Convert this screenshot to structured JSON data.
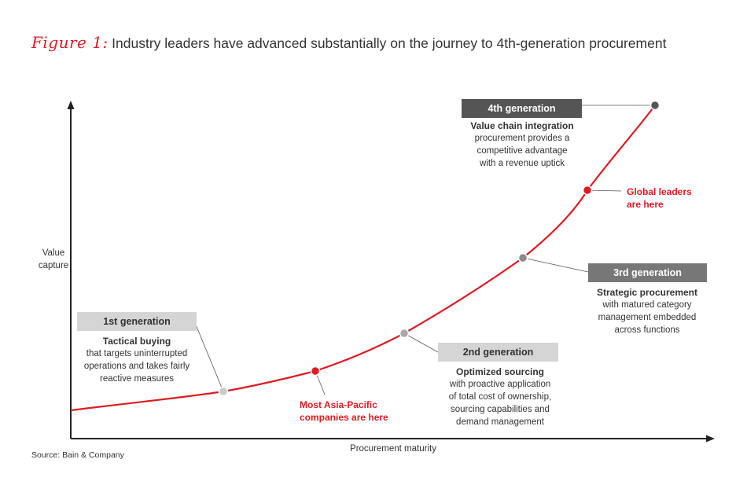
{
  "title": {
    "figure_label": "Figure 1:",
    "text": "Industry leaders have advanced substantially on the journey to 4th-generation procurement"
  },
  "axes": {
    "y_label_line1": "Value",
    "y_label_line2": "capture",
    "x_label": "Procurement maturity"
  },
  "stages": {
    "first": {
      "label": "1st generation",
      "heading": "Tactical buying",
      "lines": [
        "that targets uninterrupted",
        "operations and takes fairly",
        "reactive measures"
      ]
    },
    "second": {
      "label": "2nd generation",
      "heading": "Optimized sourcing",
      "lines": [
        "with proactive application",
        "of total cost of ownership,",
        "sourcing capabilities and",
        "demand management"
      ]
    },
    "third": {
      "label": "3rd generation",
      "heading": "Strategic procurement",
      "lines": [
        "with matured category",
        "management embedded",
        "across functions"
      ]
    },
    "fourth": {
      "label": "4th generation",
      "heading": "Value chain integration",
      "lines": [
        "procurement provides a",
        "competitive advantage",
        "with a revenue uptick"
      ]
    }
  },
  "callouts": {
    "asia": {
      "line1": "Most Asia-Pacific",
      "line2": "companies are here"
    },
    "global": {
      "line1": "Global leaders",
      "line2": "are here"
    }
  },
  "source": "Source: Bain & Company",
  "colors": {
    "accent_red": "#dc1c23",
    "gray_point": "#bfbfbf",
    "mid_point": "#8a8a8a",
    "dark_point": "#555555",
    "axis": "#222222"
  }
}
